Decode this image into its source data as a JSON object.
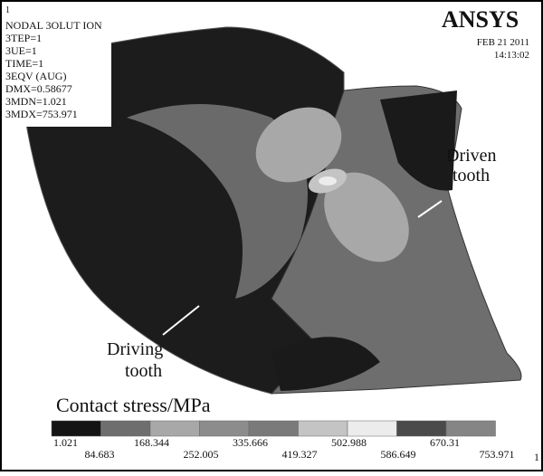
{
  "window_number": "1",
  "info": [
    "NODAL 3OLUT ION",
    "3TEP=1",
    "3UE=1",
    "TIME=1",
    "3EQV (AUG)",
    "DMX=0.58677",
    "3MDN=1.021",
    "3MDX=753.971"
  ],
  "logo": "ANSYS",
  "date": "FEB 21 2011",
  "time": "14:13:02",
  "annotations": {
    "driven": [
      "Driven",
      "tooth"
    ],
    "driving": [
      "Driving",
      "tooth"
    ]
  },
  "legend": {
    "title": "Contact stress/MPa",
    "labels": [
      "1.021",
      "84.683",
      "168.344",
      "252.005",
      "335.666",
      "419.327",
      "502.988",
      "586.649",
      "670.31",
      "753.971"
    ],
    "colors": [
      "#141414",
      "#6e6e6e",
      "#a8a8a8",
      "#8c8c8c",
      "#7a7a7a",
      "#c4c4c4",
      "#ececec",
      "#4a4a4a",
      "#858585"
    ]
  }
}
